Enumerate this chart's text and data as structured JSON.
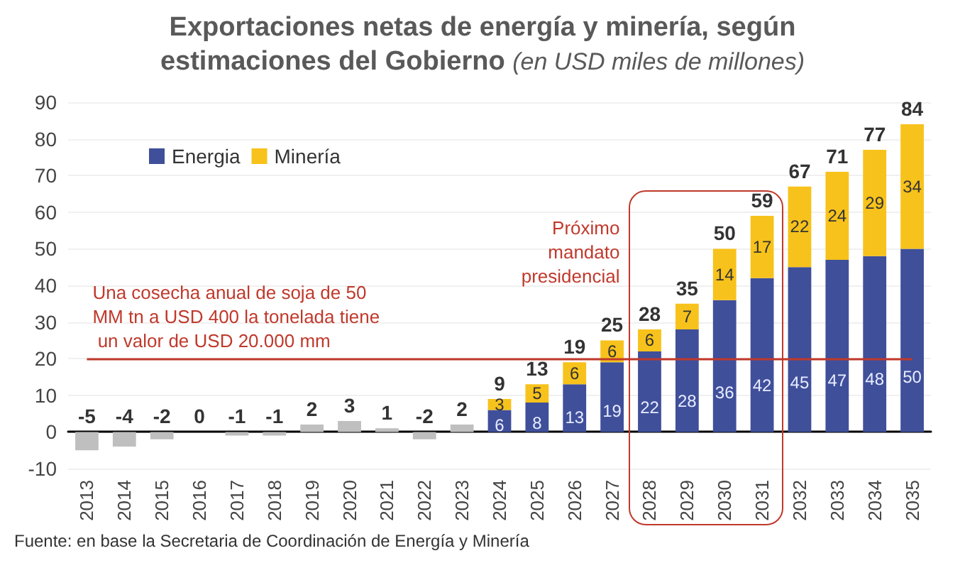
{
  "chart_data": {
    "type": "bar",
    "title": "Exportaciones netas de energía y minería, según estimaciones del Gobierno",
    "subtitle": "(en USD miles de millones)",
    "categories": [
      "2013",
      "2014",
      "2015",
      "2016",
      "2017",
      "2018",
      "2019",
      "2020",
      "2021",
      "2022",
      "2023",
      "2024",
      "2025",
      "2026",
      "2027",
      "2028",
      "2029",
      "2030",
      "2031",
      "2032",
      "2033",
      "2034",
      "2035"
    ],
    "stacked": true,
    "series": [
      {
        "color": "#bfbfbf",
        "values": [
          -5,
          -4,
          -2,
          0,
          -1,
          -1,
          2,
          3,
          1,
          -2,
          2,
          null,
          null,
          null,
          null,
          null,
          null,
          null,
          null,
          null,
          null,
          null,
          null
        ]
      },
      {
        "name": "Energia",
        "color": "#3f4f9a",
        "values": [
          null,
          null,
          null,
          null,
          null,
          null,
          null,
          null,
          null,
          null,
          null,
          6,
          8,
          13,
          19,
          22,
          28,
          36,
          42,
          45,
          47,
          48,
          50
        ],
        "value_labels": [
          null,
          null,
          null,
          null,
          null,
          null,
          null,
          null,
          null,
          null,
          null,
          "6",
          "8",
          "13",
          "19",
          "22",
          "28",
          "36",
          "42",
          "45",
          "47",
          "48",
          "50"
        ]
      },
      {
        "name": "Minería",
        "color": "#f7c21b",
        "values": [
          null,
          null,
          null,
          null,
          null,
          null,
          null,
          null,
          null,
          null,
          null,
          3,
          5,
          6,
          6,
          6,
          7,
          14,
          17,
          22,
          24,
          29,
          34
        ],
        "value_labels": [
          null,
          null,
          null,
          null,
          null,
          null,
          null,
          null,
          null,
          null,
          null,
          "3",
          "5",
          "6",
          "6",
          "6",
          "7",
          "14",
          "17",
          "22",
          "24",
          "29",
          "34"
        ]
      }
    ],
    "totals": [
      "-5",
      "-4",
      "-2",
      "0",
      "-1",
      "-1",
      "2",
      "3",
      "1",
      "-2",
      "2",
      "9",
      "13",
      "19",
      "25",
      "28",
      "35",
      "50",
      "59",
      "67",
      "71",
      "77",
      "84"
    ],
    "ylim": [
      -10,
      90
    ],
    "yticks": [
      -10,
      0,
      10,
      20,
      30,
      40,
      50,
      60,
      70,
      80,
      90
    ],
    "grid": "y",
    "legend": "top left",
    "ref_lines": [
      {
        "axis": "y",
        "value": 20,
        "label": "Una cosecha anual de soja de 50 MM tn a USD 400 la tonelada tiene un valor de USD 20.000 mm",
        "color": "#c0392b"
      }
    ],
    "annotations": [
      "Próximo mandato presidencial",
      "Fuente: en base la Secretaria de Coordinación de Energía y Minería"
    ]
  }
}
